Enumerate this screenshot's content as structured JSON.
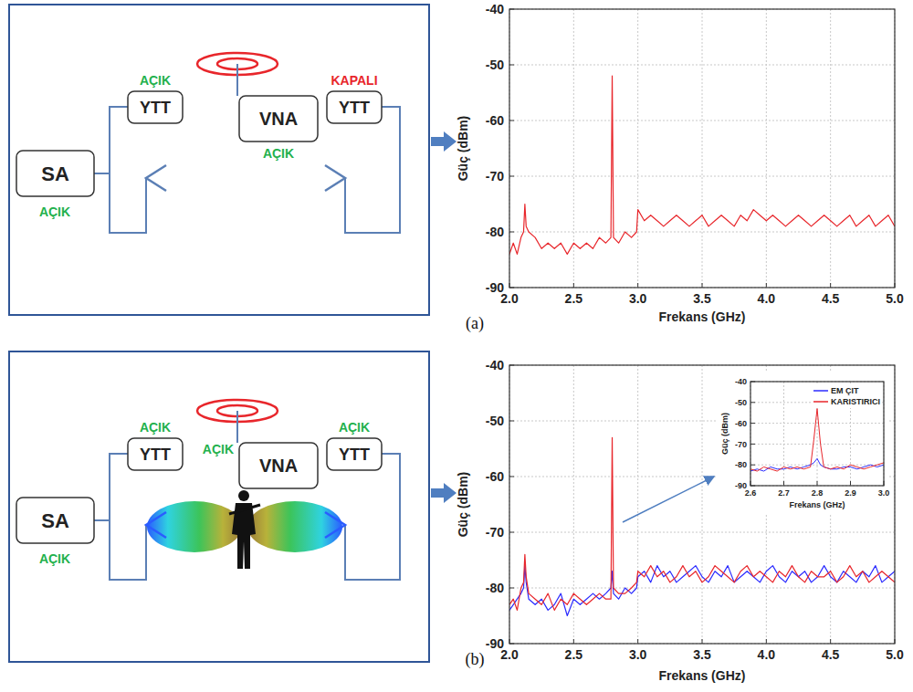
{
  "panels": [
    {
      "label": "(a)",
      "diagram": {
        "nodes": [
          {
            "label": "SA",
            "state": "AÇIK",
            "color": "#22b14c"
          },
          {
            "label": "YTT",
            "state": "AÇIK",
            "color": "#22b14c"
          },
          {
            "label": "VNA",
            "state": "AÇIK",
            "color": "#22b14c"
          },
          {
            "label": "YTT",
            "state": "KAPALI",
            "color": "#e8262b"
          }
        ]
      }
    },
    {
      "label": "(b)",
      "diagram": {
        "nodes": [
          {
            "label": "SA",
            "state": "AÇIK",
            "color": "#22b14c"
          },
          {
            "label": "YTT",
            "state": "AÇIK",
            "color": "#22b14c"
          },
          {
            "label": "VNA",
            "state": "AÇIK",
            "color": "#22b14c"
          },
          {
            "label": "YTT",
            "state": "AÇIK",
            "color": "#22b14c"
          }
        ]
      }
    }
  ],
  "chart_data": [
    {
      "type": "line",
      "xlabel": "Frekans (GHz)",
      "ylabel": "Güç (dBm)",
      "x": [
        2.0,
        2.03,
        2.06,
        2.09,
        2.11,
        2.12,
        2.13,
        2.15,
        2.2,
        2.25,
        2.3,
        2.35,
        2.4,
        2.45,
        2.5,
        2.55,
        2.6,
        2.65,
        2.7,
        2.75,
        2.79,
        2.8,
        2.81,
        2.85,
        2.9,
        2.95,
        2.99,
        3.0,
        3.05,
        3.1,
        3.15,
        3.2,
        3.25,
        3.3,
        3.35,
        3.4,
        3.45,
        3.5,
        3.55,
        3.6,
        3.65,
        3.7,
        3.75,
        3.8,
        3.85,
        3.9,
        3.95,
        4.0,
        4.05,
        4.1,
        4.15,
        4.2,
        4.25,
        4.3,
        4.35,
        4.4,
        4.45,
        4.5,
        4.55,
        4.6,
        4.65,
        4.7,
        4.75,
        4.8,
        4.85,
        4.9,
        4.95,
        5.0
      ],
      "series": [
        {
          "color": "#e8262b",
          "values": [
            -84,
            -82,
            -84,
            -81,
            -80,
            -75,
            -79,
            -80,
            -81,
            -83,
            -82,
            -83,
            -82,
            -84,
            -82,
            -83,
            -82,
            -83,
            -81,
            -82,
            -81,
            -52,
            -81,
            -82,
            -80,
            -81,
            -80,
            -76,
            -78,
            -77,
            -78,
            -79,
            -78,
            -77,
            -78,
            -79,
            -78,
            -77,
            -79,
            -78,
            -77,
            -78,
            -79,
            -77,
            -78,
            -76,
            -77,
            -78,
            -77,
            -78,
            -79,
            -78,
            -77,
            -78,
            -79,
            -78,
            -77,
            -78,
            -79,
            -78,
            -77,
            -79,
            -78,
            -77,
            -79,
            -78,
            -77,
            -79
          ]
        }
      ],
      "xlim": [
        2,
        5
      ],
      "ylim": [
        -90,
        -40
      ],
      "xticks": [
        {
          "value": 2,
          "label": "2.0"
        },
        2.5,
        {
          "value": 3,
          "label": "3.0"
        },
        3.5,
        {
          "value": 4,
          "label": "4.0"
        },
        4.5,
        {
          "value": 5,
          "label": "5.0"
        }
      ],
      "yticks": [
        -40,
        -50,
        -60,
        -70,
        -80,
        -90
      ],
      "grid": true
    },
    {
      "type": "line",
      "xlabel": "Frekans (GHz)",
      "ylabel": "Güç (dBm)",
      "x": [
        2.0,
        2.03,
        2.06,
        2.09,
        2.11,
        2.12,
        2.13,
        2.15,
        2.2,
        2.25,
        2.3,
        2.35,
        2.4,
        2.45,
        2.5,
        2.55,
        2.6,
        2.65,
        2.7,
        2.75,
        2.79,
        2.8,
        2.81,
        2.85,
        2.9,
        2.95,
        2.99,
        3.0,
        3.05,
        3.1,
        3.15,
        3.2,
        3.25,
        3.3,
        3.35,
        3.4,
        3.45,
        3.5,
        3.55,
        3.6,
        3.65,
        3.7,
        3.75,
        3.8,
        3.85,
        3.9,
        3.95,
        4.0,
        4.05,
        4.1,
        4.15,
        4.2,
        4.25,
        4.3,
        4.35,
        4.4,
        4.45,
        4.5,
        4.55,
        4.6,
        4.65,
        4.7,
        4.75,
        4.8,
        4.85,
        4.9,
        4.95,
        5.0
      ],
      "series": [
        {
          "color": "#2b2bff",
          "values": [
            -84,
            -83,
            -82,
            -81,
            -80,
            -76,
            -79,
            -82,
            -83,
            -82,
            -84,
            -83,
            -81,
            -85,
            -82,
            -83,
            -82,
            -81,
            -82,
            -81,
            -80,
            -77,
            -81,
            -82,
            -80,
            -81,
            -80,
            -78,
            -77,
            -79,
            -76,
            -78,
            -77,
            -79,
            -78,
            -77,
            -76,
            -78,
            -79,
            -77,
            -78,
            -76,
            -79,
            -78,
            -77,
            -78,
            -79,
            -77,
            -76,
            -78,
            -79,
            -77,
            -78,
            -77,
            -79,
            -78,
            -76,
            -78,
            -79,
            -77,
            -78,
            -79,
            -77,
            -78,
            -76,
            -79,
            -78,
            -77
          ]
        },
        {
          "color": "#e8262b",
          "values": [
            -83,
            -82,
            -84,
            -80,
            -79,
            -74,
            -78,
            -81,
            -82,
            -83,
            -81,
            -84,
            -82,
            -83,
            -81,
            -82,
            -83,
            -82,
            -81,
            -82,
            -82,
            -53,
            -80,
            -81,
            -81,
            -80,
            -79,
            -77,
            -78,
            -76,
            -78,
            -77,
            -79,
            -78,
            -76,
            -78,
            -77,
            -79,
            -78,
            -76,
            -77,
            -78,
            -79,
            -77,
            -76,
            -78,
            -77,
            -78,
            -79,
            -77,
            -78,
            -76,
            -78,
            -79,
            -77,
            -78,
            -78,
            -77,
            -79,
            -78,
            -76,
            -78,
            -77,
            -79,
            -78,
            -77,
            -78,
            -79
          ]
        }
      ],
      "xlim": [
        2,
        5
      ],
      "ylim": [
        -90,
        -40
      ],
      "xticks": [
        {
          "value": 2,
          "label": "2.0"
        },
        2.5,
        {
          "value": 3,
          "label": "3.0"
        },
        3.5,
        {
          "value": 4,
          "label": "4.0"
        },
        4.5,
        {
          "value": 5,
          "label": "5.0"
        }
      ],
      "yticks": [
        -40,
        -50,
        -60,
        -70,
        -80,
        -90
      ],
      "grid": true
    },
    {
      "type": "line",
      "xlabel": "Frekans (GHz)",
      "ylabel": "Güç (dBm)",
      "x": [
        2.6,
        2.62,
        2.64,
        2.66,
        2.68,
        2.7,
        2.72,
        2.74,
        2.76,
        2.78,
        2.79,
        2.8,
        2.81,
        2.82,
        2.84,
        2.86,
        2.88,
        2.9,
        2.92,
        2.94,
        2.96,
        2.98,
        3.0
      ],
      "series": [
        {
          "name": "EM ÇIT",
          "color": "#2b2bff",
          "values": [
            -83,
            -82,
            -83,
            -81,
            -82,
            -82,
            -81,
            -82,
            -81,
            -80,
            -79,
            -77,
            -80,
            -81,
            -82,
            -82,
            -81,
            -81,
            -82,
            -81,
            -80,
            -81,
            -80
          ]
        },
        {
          "name": "KARISTIRICI",
          "color": "#e8262b",
          "values": [
            -82,
            -83,
            -81,
            -82,
            -83,
            -81,
            -82,
            -81,
            -82,
            -81,
            -68,
            -53,
            -70,
            -81,
            -82,
            -81,
            -82,
            -80,
            -81,
            -82,
            -81,
            -80,
            -79
          ]
        }
      ],
      "xlim": [
        2.6,
        3.0
      ],
      "ylim": [
        -90,
        -40
      ],
      "xticks": [
        2.6,
        2.7,
        2.8,
        2.9,
        {
          "value": 3,
          "label": "3.0"
        }
      ],
      "yticks": [
        -40,
        -50,
        -60,
        -70,
        -80,
        -90
      ],
      "grid": true,
      "legend": "upper right"
    }
  ]
}
